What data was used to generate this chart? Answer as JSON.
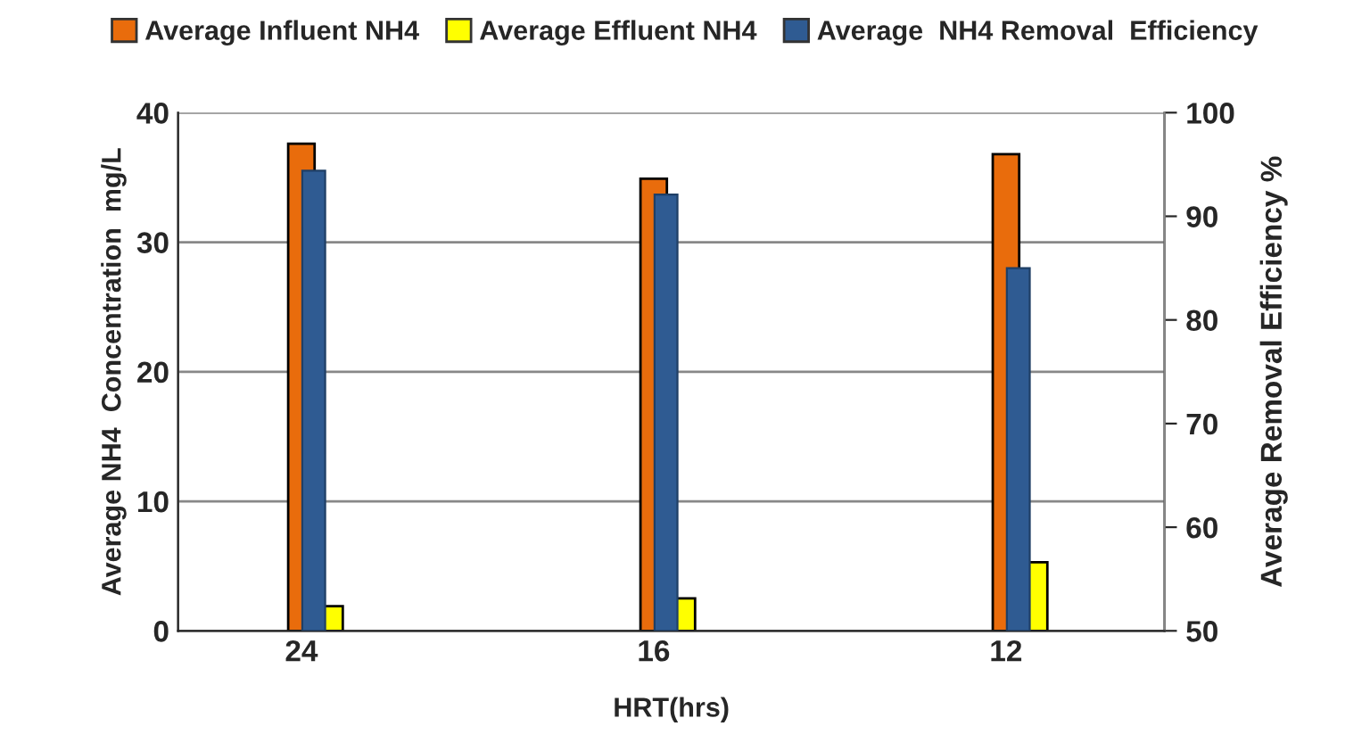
{
  "chart_data": {
    "type": "bar",
    "categories": [
      "24",
      "16",
      "12"
    ],
    "xlabel": "HRT(hrs)",
    "ylabel": "Average NH4  Concentration  mg/L",
    "y2label": "Average Removal Efficiency %",
    "series": [
      {
        "name": "Average Influent NH4",
        "color": "#e96c0c",
        "values": [
          37.6,
          34.9,
          36.8
        ]
      },
      {
        "name": "Average Effluent NH4",
        "color": "#ffff00",
        "values": [
          1.9,
          2.5,
          5.3
        ]
      },
      {
        "name": "Average  NH4 Removal  Efficiency",
        "color": "#2f5b92",
        "values": [
          94.4,
          92.1,
          85.0
        ],
        "axis": "y2"
      }
    ],
    "ylim": [
      0,
      40
    ],
    "yticks": [
      0,
      10,
      20,
      30,
      40
    ],
    "y2lim": [
      50,
      100
    ],
    "y2ticks": [
      50,
      60,
      70,
      80,
      90,
      100
    ],
    "grid": "y",
    "legend": "top"
  }
}
